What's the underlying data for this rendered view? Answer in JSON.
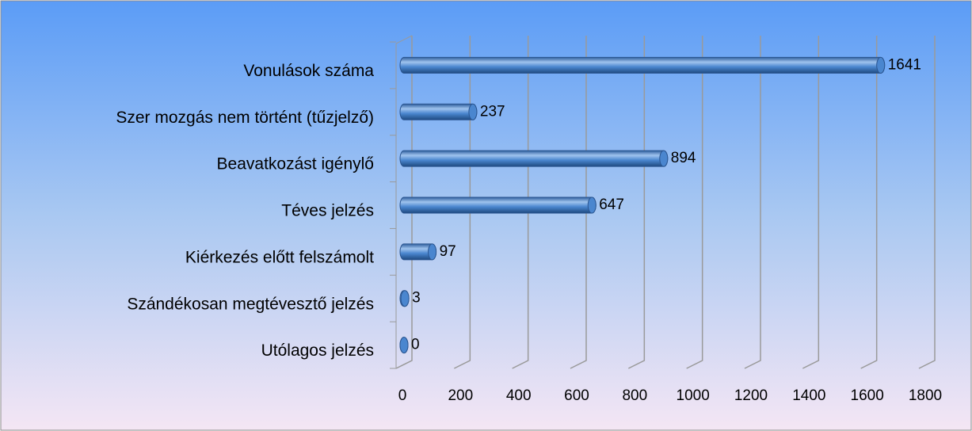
{
  "chart_data": {
    "type": "bar",
    "orientation": "horizontal",
    "categories": [
      "Vonulások száma",
      "Szer mozgás nem történt (tűzjelző)",
      "Beavatkozást igénylő",
      "Téves jelzés",
      "Kiérkezés előtt felszámolt",
      "Szándékosan megtévesztő jelzés",
      "Utólagos jelzés"
    ],
    "values": [
      1641,
      237,
      894,
      647,
      97,
      3,
      0
    ],
    "color": "#4a86cf",
    "xlim": [
      0,
      1800
    ],
    "xticks": [
      0,
      200,
      400,
      600,
      800,
      1000,
      1200,
      1400,
      1600,
      1800
    ],
    "grid": true
  }
}
